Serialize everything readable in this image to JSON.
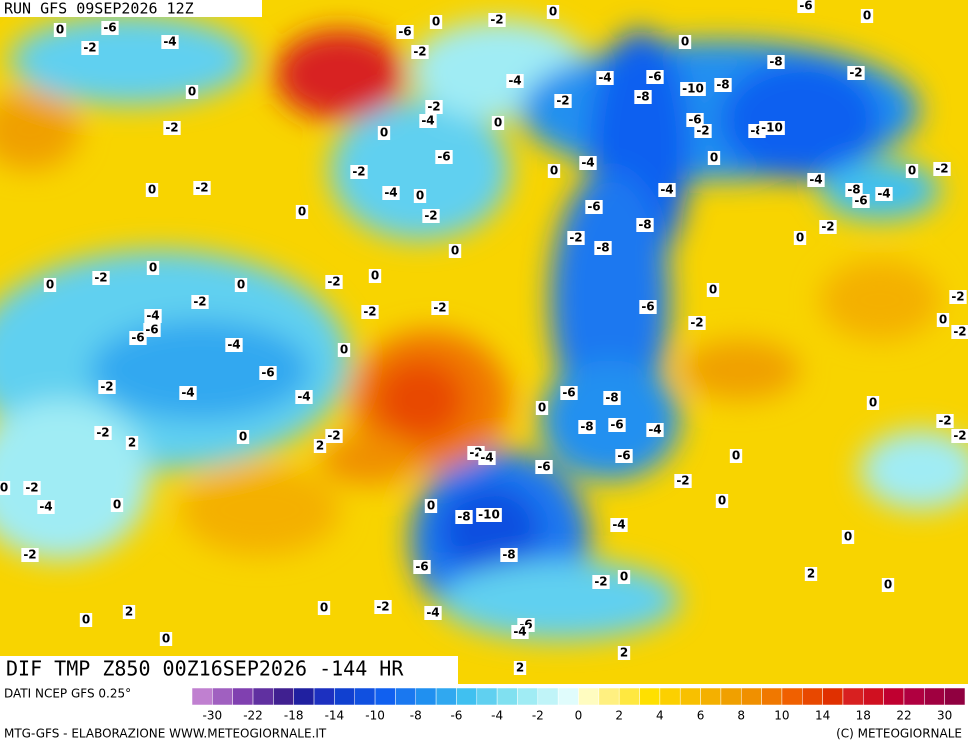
{
  "header": {
    "run": "RUN GFS 09SEP2026 12Z",
    "field": "DIF TMP Z850 00Z16SEP2026 -144 HR"
  },
  "footer": {
    "source": "DATI NCEP GFS 0.25°",
    "credit": "MTG-GFS - ELABORAZIONE WWW.METEOGIORNALE.IT",
    "copyright": "(C) METEOGIORNALE"
  },
  "colorbar": {
    "colors": [
      "#c080d0",
      "#a060c0",
      "#8040b0",
      "#6030a0",
      "#402090",
      "#2020a0",
      "#1c30c0",
      "#1040d0",
      "#1050e0",
      "#1060f0",
      "#1a78f0",
      "#2090f0",
      "#30a8f0",
      "#40c0f0",
      "#60d0f0",
      "#80e0f0",
      "#a0ecf4",
      "#c0f4f8",
      "#e0fcfc",
      "#fffcc0",
      "#fff080",
      "#ffe840",
      "#ffe000",
      "#fcd000",
      "#f8c000",
      "#f4b000",
      "#f0a000",
      "#f09000",
      "#f07800",
      "#f06000",
      "#e84800",
      "#e03000",
      "#d82020",
      "#d01020",
      "#c00030",
      "#b00040",
      "#a00040",
      "#900040"
    ],
    "labels": [
      "-30",
      "-22",
      "-18",
      "-14",
      "-10",
      "-8",
      "-6",
      "-4",
      "-2",
      "0",
      "2",
      "4",
      "6",
      "8",
      "10",
      "14",
      "18",
      "22",
      "30"
    ]
  },
  "contour_labels": [
    "-6",
    "-4",
    "0",
    "-2",
    "0",
    "-2",
    "0",
    "-2",
    "0",
    "0",
    "-6",
    "0",
    "-2",
    "-2",
    "0",
    "-6",
    "0",
    "0",
    "-4",
    "-2",
    "-4",
    "-6",
    "-8",
    "-10",
    "-8",
    "-8",
    "-2",
    "-2",
    "-4",
    "0",
    "-6",
    "-2",
    "-8",
    "-10",
    "-6",
    "-2",
    "-4",
    "0",
    "-2",
    "0",
    "-4",
    "0",
    "-4",
    "-4",
    "-8",
    "-6",
    "-4",
    "0",
    "-2",
    "-6",
    "-8",
    "-2",
    "-8",
    "0",
    "0",
    "-2",
    "0",
    "-2",
    "0",
    "0",
    "-2",
    "0",
    "-2",
    "-2",
    "-2",
    "-4",
    "-6",
    "-6",
    "-4",
    "0",
    "-6",
    "-2",
    "0",
    "-2",
    "0",
    "-2",
    "-6",
    "-4",
    "-2",
    "-4",
    "-6",
    "-8",
    "0",
    "0",
    "-2",
    "-8",
    "-6",
    "-4",
    "-2",
    "2",
    "0",
    "-2",
    "2",
    "-2",
    "-4",
    "-6",
    "0",
    "-2",
    "-6",
    "-2",
    "0",
    "-2",
    "-4",
    "0",
    "0",
    "0",
    "-8",
    "-10",
    "-4",
    "0",
    "-2",
    "-8",
    "-6",
    "2",
    "0",
    "-2",
    "0",
    "2",
    "0",
    "0",
    "-2",
    "-4",
    "-6",
    "-4",
    "0",
    "2",
    "2"
  ]
}
